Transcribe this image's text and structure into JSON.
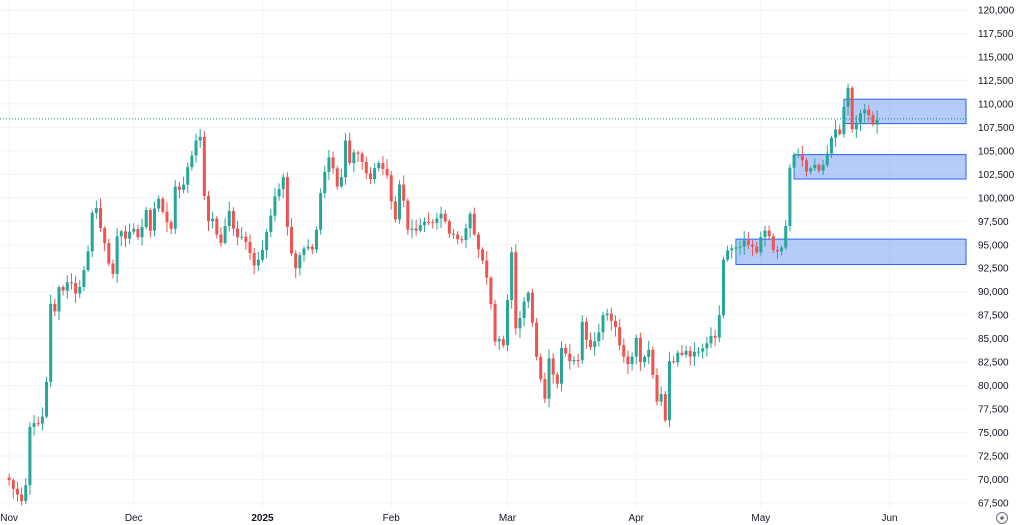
{
  "chart_data": {
    "type": "candlestick",
    "colors": {
      "up": "#26a69a",
      "down": "#ef5350",
      "grid": "#f0f3fa",
      "zone_fill": "#5b8cf0",
      "zone_stroke": "#2962ff",
      "price_line": "#089981"
    },
    "y_axis": {
      "ylim": [
        67000,
        121000
      ],
      "ticks": [
        67500,
        70000,
        72500,
        75000,
        77500,
        80000,
        82500,
        85000,
        87500,
        90000,
        92500,
        95000,
        97500,
        100000,
        102500,
        105000,
        107500,
        110000,
        112500,
        115000,
        117500,
        120000
      ],
      "tick_labels": [
        "67,500",
        "70,000",
        "72,500",
        "75,000",
        "77,500",
        "80,000",
        "82,500",
        "85,000",
        "87,500",
        "90,000",
        "92,500",
        "95,000",
        "97,500",
        "100,000",
        "102,500",
        "105,000",
        "107,500",
        "110,000",
        "112,500",
        "115,000",
        "117,500",
        "120,000"
      ]
    },
    "x_axis": {
      "labels": [
        {
          "text": "Nov",
          "date": "2024-11-01",
          "bold": false
        },
        {
          "text": "Dec",
          "date": "2024-12-01",
          "bold": false
        },
        {
          "text": "2025",
          "date": "2025-01-01",
          "bold": true
        },
        {
          "text": "Feb",
          "date": "2025-02-01",
          "bold": false
        },
        {
          "text": "Mar",
          "date": "2025-03-01",
          "bold": false
        },
        {
          "text": "Apr",
          "date": "2025-04-01",
          "bold": false
        },
        {
          "text": "May",
          "date": "2025-05-01",
          "bold": false
        },
        {
          "text": "Jun",
          "date": "2025-06-01",
          "bold": false
        }
      ]
    },
    "close_anchors": [
      [
        "2024-10-31",
        70200
      ],
      [
        "2024-11-03",
        68400
      ],
      [
        "2024-11-04",
        67700
      ],
      [
        "2024-11-05",
        69400
      ],
      [
        "2024-11-06",
        75600
      ],
      [
        "2024-11-07",
        76000
      ],
      [
        "2024-11-09",
        76700
      ],
      [
        "2024-11-10",
        80400
      ],
      [
        "2024-11-11",
        88700
      ],
      [
        "2024-11-12",
        87900
      ],
      [
        "2024-11-13",
        90500
      ],
      [
        "2024-11-15",
        91000
      ],
      [
        "2024-11-17",
        89800
      ],
      [
        "2024-11-18",
        90500
      ],
      [
        "2024-11-19",
        92300
      ],
      [
        "2024-11-20",
        94300
      ],
      [
        "2024-11-21",
        98400
      ],
      [
        "2024-11-22",
        98900
      ],
      [
        "2024-11-25",
        93000
      ],
      [
        "2024-11-26",
        91900
      ],
      [
        "2024-11-27",
        95900
      ],
      [
        "2024-11-30",
        96400
      ],
      [
        "2024-12-02",
        95800
      ],
      [
        "2024-12-04",
        98700
      ],
      [
        "2024-12-05",
        96500
      ],
      [
        "2024-12-07",
        99900
      ],
      [
        "2024-12-09",
        97400
      ],
      [
        "2024-12-10",
        96700
      ],
      [
        "2024-12-11",
        101200
      ],
      [
        "2024-12-13",
        101400
      ],
      [
        "2024-12-15",
        104500
      ],
      [
        "2024-12-16",
        106100
      ],
      [
        "2024-12-17",
        106500
      ],
      [
        "2024-12-18",
        100200
      ],
      [
        "2024-12-19",
        97500
      ],
      [
        "2024-12-20",
        97800
      ],
      [
        "2024-12-22",
        95200
      ],
      [
        "2024-12-24",
        98600
      ],
      [
        "2024-12-26",
        95800
      ],
      [
        "2024-12-28",
        95300
      ],
      [
        "2024-12-30",
        92800
      ],
      [
        "2024-12-31",
        93400
      ],
      [
        "2025-01-03",
        98100
      ],
      [
        "2025-01-06",
        102200
      ],
      [
        "2025-01-07",
        96900
      ],
      [
        "2025-01-09",
        92500
      ],
      [
        "2025-01-11",
        94600
      ],
      [
        "2025-01-13",
        94500
      ],
      [
        "2025-01-14",
        96600
      ],
      [
        "2025-01-15",
        100500
      ],
      [
        "2025-01-17",
        104300
      ],
      [
        "2025-01-19",
        101200
      ],
      [
        "2025-01-20",
        102200
      ],
      [
        "2025-01-21",
        106100
      ],
      [
        "2025-01-22",
        103700
      ],
      [
        "2025-01-24",
        104700
      ],
      [
        "2025-01-26",
        102600
      ],
      [
        "2025-01-27",
        102000
      ],
      [
        "2025-01-29",
        103700
      ],
      [
        "2025-01-31",
        102400
      ],
      [
        "2025-02-02",
        97700
      ],
      [
        "2025-02-03",
        101400
      ],
      [
        "2025-02-05",
        96600
      ],
      [
        "2025-02-07",
        96500
      ],
      [
        "2025-02-10",
        97400
      ],
      [
        "2025-02-12",
        97800
      ],
      [
        "2025-02-14",
        97500
      ],
      [
        "2025-02-16",
        96100
      ],
      [
        "2025-02-18",
        95500
      ],
      [
        "2025-02-20",
        98300
      ],
      [
        "2025-02-21",
        96100
      ],
      [
        "2025-02-24",
        91500
      ],
      [
        "2025-02-25",
        88700
      ],
      [
        "2025-02-26",
        84700
      ],
      [
        "2025-02-28",
        84300
      ],
      [
        "2025-03-02",
        94200
      ],
      [
        "2025-03-03",
        86100
      ],
      [
        "2025-03-04",
        87200
      ],
      [
        "2025-03-06",
        89900
      ],
      [
        "2025-03-07",
        86700
      ],
      [
        "2025-03-09",
        80700
      ],
      [
        "2025-03-10",
        78600
      ],
      [
        "2025-03-11",
        82900
      ],
      [
        "2025-03-13",
        80200
      ],
      [
        "2025-03-14",
        84000
      ],
      [
        "2025-03-16",
        82600
      ],
      [
        "2025-03-18",
        82700
      ],
      [
        "2025-03-19",
        86800
      ],
      [
        "2025-03-21",
        84100
      ],
      [
        "2025-03-24",
        87500
      ],
      [
        "2025-03-26",
        86900
      ],
      [
        "2025-03-28",
        84300
      ],
      [
        "2025-03-30",
        82300
      ],
      [
        "2025-04-01",
        85100
      ],
      [
        "2025-04-02",
        82500
      ],
      [
        "2025-04-04",
        83800
      ],
      [
        "2025-04-06",
        78300
      ],
      [
        "2025-04-07",
        79100
      ],
      [
        "2025-04-08",
        76300
      ],
      [
        "2025-04-09",
        82600
      ],
      [
        "2025-04-11",
        83500
      ],
      [
        "2025-04-13",
        83700
      ],
      [
        "2025-04-15",
        83600
      ],
      [
        "2025-04-18",
        84500
      ],
      [
        "2025-04-20",
        85100
      ],
      [
        "2025-04-21",
        87500
      ],
      [
        "2025-04-22",
        93400
      ],
      [
        "2025-04-25",
        94700
      ],
      [
        "2025-04-28",
        95000
      ],
      [
        "2025-04-30",
        94200
      ],
      [
        "2025-05-02",
        96500
      ],
      [
        "2025-05-03",
        95900
      ],
      [
        "2025-05-05",
        94300
      ],
      [
        "2025-05-06",
        94700
      ],
      [
        "2025-05-07",
        97000
      ],
      [
        "2025-05-08",
        103200
      ],
      [
        "2025-05-10",
        104600
      ],
      [
        "2025-05-12",
        102800
      ],
      [
        "2025-05-14",
        103500
      ],
      [
        "2025-05-16",
        103500
      ],
      [
        "2025-05-18",
        106400
      ],
      [
        "2025-05-20",
        106800
      ],
      [
        "2025-05-21",
        109700
      ],
      [
        "2025-05-22",
        111700
      ],
      [
        "2025-05-23",
        107300
      ],
      [
        "2025-05-25",
        109000
      ],
      [
        "2025-05-26",
        109400
      ],
      [
        "2025-05-27",
        108800
      ],
      [
        "2025-05-28",
        107800
      ],
      [
        "2025-05-29",
        108300
      ]
    ],
    "zones": [
      {
        "x_start": "2025-05-21",
        "x_end": "2025-06-30",
        "y_low": 107900,
        "y_high": 110500
      },
      {
        "x_start": "2025-05-09",
        "x_end": "2025-06-30",
        "y_low": 102000,
        "y_high": 104600
      },
      {
        "x_start": "2025-04-25",
        "x_end": "2025-06-30",
        "y_low": 92900,
        "y_high": 95600
      }
    ],
    "reference_line": {
      "y": 108400,
      "style": "dotted"
    }
  },
  "corner_icon": "settings-circle-icon"
}
